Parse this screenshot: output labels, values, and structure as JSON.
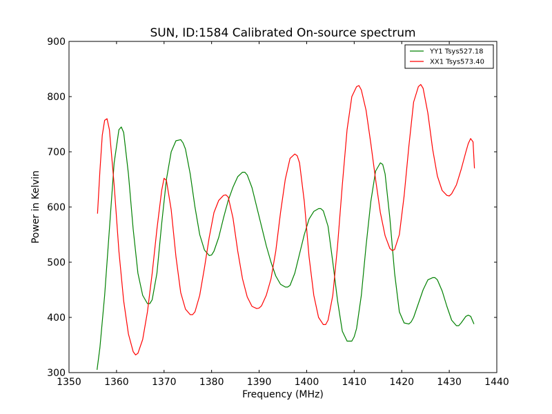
{
  "chart_data": {
    "type": "line",
    "title": "SUN, ID:1584 Calibrated On-source spectrum",
    "xlabel": "Frequency (MHz)",
    "ylabel": "Power in Kelvin",
    "xlim": [
      1350,
      1440
    ],
    "ylim": [
      300,
      900
    ],
    "xticks": [
      1350,
      1360,
      1370,
      1380,
      1390,
      1400,
      1410,
      1420,
      1430,
      1440
    ],
    "yticks": [
      300,
      400,
      500,
      600,
      700,
      800,
      900
    ],
    "grid": false,
    "legend_position": "top-right",
    "series": [
      {
        "name": "YY1 Tsys527.18",
        "color": "#008000",
        "x": [
          1355.9,
          1356.5,
          1357.5,
          1358.5,
          1359.5,
          1360.5,
          1361.0,
          1361.5,
          1362.5,
          1363.5,
          1364.5,
          1365.5,
          1366.5,
          1367.0,
          1367.5,
          1368.5,
          1369.5,
          1370.5,
          1371.5,
          1372.5,
          1373.5,
          1374.0,
          1374.5,
          1375.5,
          1376.5,
          1377.5,
          1378.5,
          1379.5,
          1380.0,
          1380.5,
          1381.5,
          1382.5,
          1383.5,
          1384.5,
          1385.5,
          1386.5,
          1387.0,
          1387.5,
          1388.5,
          1389.5,
          1390.5,
          1391.5,
          1392.5,
          1393.5,
          1394.5,
          1395.5,
          1396.0,
          1396.5,
          1397.5,
          1398.5,
          1399.5,
          1400.5,
          1401.5,
          1402.5,
          1403.0,
          1403.5,
          1404.5,
          1405.5,
          1406.5,
          1407.5,
          1408.5,
          1409.5,
          1410.0,
          1410.5,
          1411.5,
          1412.5,
          1413.5,
          1414.5,
          1415.5,
          1416.0,
          1416.5,
          1417.5,
          1418.5,
          1419.5,
          1420.5,
          1421.5,
          1422.0,
          1422.5,
          1423.5,
          1424.5,
          1425.5,
          1426.5,
          1427.0,
          1427.5,
          1428.5,
          1429.5,
          1430.5,
          1431.5,
          1432.0,
          1432.5,
          1433.5,
          1434.0,
          1434.5,
          1435.2
        ],
        "y": [
          305,
          345,
          440,
          560,
          680,
          740,
          745,
          735,
          660,
          560,
          480,
          440,
          425,
          425,
          432,
          480,
          570,
          650,
          700,
          720,
          722,
          716,
          705,
          660,
          600,
          550,
          522,
          512,
          513,
          520,
          545,
          580,
          612,
          636,
          655,
          663,
          663,
          658,
          635,
          600,
          565,
          530,
          500,
          475,
          460,
          455,
          455,
          458,
          480,
          515,
          550,
          578,
          592,
          597,
          597,
          593,
          565,
          500,
          430,
          375,
          357,
          357,
          365,
          380,
          440,
          530,
          610,
          665,
          680,
          677,
          660,
          580,
          480,
          410,
          390,
          388,
          392,
          400,
          425,
          450,
          468,
          472,
          472,
          468,
          448,
          420,
          395,
          385,
          385,
          390,
          402,
          404,
          402,
          388
        ]
      },
      {
        "name": "XX1 Tsys573.40",
        "color": "#ff0000",
        "x": [
          1356.0,
          1356.5,
          1357.0,
          1357.5,
          1358.0,
          1358.5,
          1359.5,
          1360.5,
          1361.5,
          1362.5,
          1363.5,
          1364.0,
          1364.5,
          1365.5,
          1366.5,
          1367.5,
          1368.5,
          1369.5,
          1370.0,
          1370.5,
          1371.5,
          1372.5,
          1373.5,
          1374.5,
          1375.5,
          1376.0,
          1376.5,
          1377.5,
          1378.5,
          1379.5,
          1380.5,
          1381.5,
          1382.5,
          1383.0,
          1383.5,
          1384.5,
          1385.5,
          1386.5,
          1387.5,
          1388.5,
          1389.5,
          1390.0,
          1390.5,
          1391.5,
          1392.5,
          1393.5,
          1394.5,
          1395.5,
          1396.5,
          1397.5,
          1398.0,
          1398.5,
          1399.5,
          1400.5,
          1401.5,
          1402.5,
          1403.5,
          1404.0,
          1404.5,
          1405.5,
          1406.5,
          1407.5,
          1408.5,
          1409.5,
          1410.5,
          1411.0,
          1411.5,
          1412.5,
          1413.5,
          1414.5,
          1415.5,
          1416.5,
          1417.5,
          1418.0,
          1418.5,
          1419.5,
          1420.5,
          1421.5,
          1422.5,
          1423.5,
          1424.0,
          1424.5,
          1425.5,
          1426.5,
          1427.5,
          1428.5,
          1429.5,
          1430.0,
          1430.5,
          1431.5,
          1432.5,
          1433.5,
          1434.0,
          1434.5,
          1435.0,
          1435.3
        ],
        "y": [
          588,
          665,
          730,
          757,
          760,
          740,
          640,
          520,
          430,
          370,
          338,
          332,
          335,
          360,
          410,
          480,
          560,
          630,
          652,
          648,
          595,
          510,
          445,
          415,
          405,
          405,
          410,
          440,
          490,
          545,
          590,
          612,
          621,
          622,
          618,
          580,
          520,
          470,
          437,
          420,
          416,
          417,
          421,
          440,
          470,
          520,
          590,
          650,
          688,
          696,
          693,
          680,
          610,
          510,
          440,
          400,
          387,
          387,
          395,
          440,
          530,
          640,
          740,
          800,
          818,
          820,
          812,
          775,
          715,
          650,
          590,
          548,
          525,
          521,
          523,
          550,
          620,
          710,
          790,
          818,
          822,
          815,
          770,
          705,
          656,
          630,
          621,
          620,
          624,
          640,
          668,
          700,
          715,
          724,
          718,
          670
        ]
      }
    ]
  }
}
